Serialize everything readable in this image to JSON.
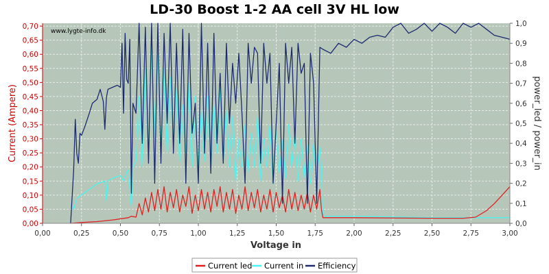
{
  "chart_data": {
    "type": "line",
    "title": "LD-30 Boost 1-2 AA cell 3V HL low",
    "watermark": "www.lygte-info.dk",
    "xlabel": "Voltage in",
    "ylabel": "Current (Ampere)",
    "y2label": "power_led / power_in",
    "xlim": [
      0,
      3.0
    ],
    "ylim": [
      0,
      0.71
    ],
    "y2lim": [
      0,
      1.0
    ],
    "x_ticks": [
      "0,00",
      "0,25",
      "0,50",
      "0,75",
      "1,00",
      "1,25",
      "1,50",
      "1,75",
      "2,00",
      "2,25",
      "2,50",
      "2,75",
      "3,00"
    ],
    "y_ticks": [
      "0,00",
      "0,05",
      "0,10",
      "0,15",
      "0,20",
      "0,25",
      "0,30",
      "0,35",
      "0,40",
      "0,45",
      "0,50",
      "0,55",
      "0,60",
      "0,65",
      "0,70"
    ],
    "y2_ticks": [
      "0,0",
      "0,1",
      "0,2",
      "0,3",
      "0,4",
      "0,5",
      "0,6",
      "0,7",
      "0,8",
      "0,9",
      "1,0"
    ],
    "grid": true,
    "legend_position": "bottom-center",
    "colors": {
      "plot_bg": "#b6c6b9",
      "grid": "#e8ece8",
      "current_led": "#e02020",
      "current_in": "#4ef2ee",
      "efficiency": "#1c2a6e",
      "left_axis": "#cc0000"
    },
    "series": [
      {
        "name": "Current led",
        "axis": "left",
        "color": "#e02020",
        "x": [
          0.18,
          0.25,
          0.35,
          0.45,
          0.55,
          0.57,
          0.6,
          0.62,
          0.64,
          0.66,
          0.68,
          0.7,
          0.72,
          0.74,
          0.76,
          0.78,
          0.8,
          0.82,
          0.84,
          0.86,
          0.88,
          0.9,
          0.92,
          0.94,
          0.96,
          0.98,
          1.0,
          1.02,
          1.04,
          1.06,
          1.08,
          1.1,
          1.12,
          1.14,
          1.16,
          1.18,
          1.2,
          1.22,
          1.24,
          1.26,
          1.28,
          1.3,
          1.32,
          1.34,
          1.36,
          1.38,
          1.4,
          1.42,
          1.44,
          1.46,
          1.48,
          1.5,
          1.52,
          1.54,
          1.56,
          1.58,
          1.6,
          1.62,
          1.64,
          1.66,
          1.68,
          1.7,
          1.72,
          1.74,
          1.76,
          1.78,
          1.79,
          1.8,
          2.0,
          2.5,
          2.7,
          2.78,
          2.85,
          2.9,
          2.95,
          3.0
        ],
        "values": [
          0.0,
          0.003,
          0.006,
          0.012,
          0.02,
          0.025,
          0.022,
          0.07,
          0.03,
          0.09,
          0.04,
          0.11,
          0.045,
          0.12,
          0.05,
          0.13,
          0.04,
          0.11,
          0.055,
          0.12,
          0.04,
          0.1,
          0.06,
          0.13,
          0.035,
          0.1,
          0.045,
          0.12,
          0.05,
          0.11,
          0.04,
          0.12,
          0.06,
          0.13,
          0.04,
          0.11,
          0.05,
          0.12,
          0.035,
          0.1,
          0.05,
          0.13,
          0.045,
          0.11,
          0.055,
          0.12,
          0.04,
          0.1,
          0.05,
          0.12,
          0.04,
          0.11,
          0.055,
          0.1,
          0.04,
          0.12,
          0.05,
          0.11,
          0.045,
          0.1,
          0.05,
          0.11,
          0.04,
          0.1,
          0.05,
          0.12,
          0.05,
          0.02,
          0.02,
          0.018,
          0.018,
          0.022,
          0.045,
          0.07,
          0.1,
          0.13
        ]
      },
      {
        "name": "Current in",
        "axis": "left",
        "color": "#4ef2ee",
        "x": [
          0.18,
          0.2,
          0.22,
          0.25,
          0.3,
          0.35,
          0.4,
          0.41,
          0.42,
          0.45,
          0.5,
          0.52,
          0.54,
          0.55,
          0.56,
          0.57,
          0.58,
          0.6,
          0.62,
          0.64,
          0.66,
          0.68,
          0.7,
          0.72,
          0.74,
          0.76,
          0.78,
          0.8,
          0.82,
          0.84,
          0.86,
          0.88,
          0.9,
          0.92,
          0.94,
          0.96,
          0.98,
          1.0,
          1.02,
          1.04,
          1.06,
          1.08,
          1.1,
          1.12,
          1.14,
          1.16,
          1.18,
          1.2,
          1.22,
          1.24,
          1.26,
          1.28,
          1.3,
          1.32,
          1.34,
          1.36,
          1.38,
          1.4,
          1.42,
          1.44,
          1.46,
          1.48,
          1.5,
          1.52,
          1.54,
          1.56,
          1.58,
          1.6,
          1.62,
          1.64,
          1.66,
          1.68,
          1.7,
          1.72,
          1.74,
          1.76,
          1.78,
          1.79,
          1.8,
          2.0,
          2.5,
          2.75,
          3.0
        ],
        "values": [
          0.07,
          0.05,
          0.09,
          0.1,
          0.12,
          0.14,
          0.15,
          0.08,
          0.15,
          0.16,
          0.17,
          0.15,
          0.18,
          0.19,
          0.13,
          0.06,
          0.2,
          0.22,
          0.45,
          0.2,
          0.55,
          0.25,
          0.63,
          0.3,
          0.6,
          0.28,
          0.55,
          0.25,
          0.52,
          0.3,
          0.48,
          0.22,
          0.42,
          0.25,
          0.5,
          0.2,
          0.45,
          0.18,
          0.4,
          0.22,
          0.45,
          0.2,
          0.42,
          0.25,
          0.48,
          0.22,
          0.4,
          0.2,
          0.38,
          0.15,
          0.3,
          0.2,
          0.35,
          0.18,
          0.32,
          0.2,
          0.38,
          0.15,
          0.3,
          0.2,
          0.35,
          0.14,
          0.33,
          0.18,
          0.3,
          0.16,
          0.35,
          0.2,
          0.32,
          0.15,
          0.3,
          0.16,
          0.28,
          0.14,
          0.28,
          0.15,
          0.27,
          0.2,
          0.025,
          0.025,
          0.02,
          0.02,
          0.02
        ]
      },
      {
        "name": "Efficiency",
        "axis": "right",
        "color": "#1c2a6e",
        "x": [
          0.18,
          0.2,
          0.21,
          0.22,
          0.23,
          0.24,
          0.25,
          0.27,
          0.3,
          0.32,
          0.35,
          0.37,
          0.39,
          0.4,
          0.41,
          0.42,
          0.45,
          0.48,
          0.5,
          0.51,
          0.52,
          0.53,
          0.54,
          0.55,
          0.56,
          0.57,
          0.58,
          0.6,
          0.62,
          0.64,
          0.66,
          0.68,
          0.7,
          0.72,
          0.74,
          0.76,
          0.78,
          0.8,
          0.82,
          0.84,
          0.86,
          0.88,
          0.9,
          0.92,
          0.94,
          0.96,
          0.98,
          1.0,
          1.02,
          1.04,
          1.06,
          1.08,
          1.1,
          1.12,
          1.14,
          1.16,
          1.18,
          1.2,
          1.22,
          1.24,
          1.26,
          1.28,
          1.3,
          1.32,
          1.34,
          1.36,
          1.38,
          1.4,
          1.42,
          1.44,
          1.46,
          1.48,
          1.5,
          1.52,
          1.54,
          1.56,
          1.58,
          1.6,
          1.62,
          1.64,
          1.66,
          1.68,
          1.7,
          1.72,
          1.74,
          1.76,
          1.78,
          1.8,
          1.85,
          1.9,
          1.95,
          2.0,
          2.05,
          2.1,
          2.15,
          2.2,
          2.25,
          2.3,
          2.35,
          2.4,
          2.45,
          2.5,
          2.55,
          2.6,
          2.65,
          2.7,
          2.75,
          2.8,
          2.85,
          2.9,
          2.95,
          3.0
        ],
        "values": [
          0.0,
          0.27,
          0.52,
          0.35,
          0.3,
          0.45,
          0.44,
          0.48,
          0.55,
          0.6,
          0.62,
          0.67,
          0.61,
          0.47,
          0.63,
          0.67,
          0.68,
          0.69,
          0.68,
          0.9,
          0.55,
          0.95,
          0.72,
          0.7,
          0.92,
          0.15,
          0.6,
          0.55,
          1.0,
          0.4,
          0.98,
          0.3,
          1.0,
          0.2,
          1.0,
          0.3,
          0.95,
          0.5,
          1.0,
          0.35,
          0.9,
          0.4,
          0.97,
          0.2,
          0.95,
          0.45,
          0.6,
          0.2,
          1.0,
          0.35,
          0.9,
          0.25,
          0.95,
          0.4,
          0.75,
          0.3,
          0.9,
          0.5,
          0.8,
          0.6,
          0.85,
          0.55,
          0.2,
          0.9,
          0.7,
          0.88,
          0.85,
          0.3,
          0.9,
          0.7,
          0.85,
          0.2,
          0.5,
          0.8,
          0.1,
          0.9,
          0.7,
          0.88,
          0.4,
          0.9,
          0.75,
          0.8,
          0.1,
          0.85,
          0.7,
          0.1,
          0.88,
          0.87,
          0.85,
          0.9,
          0.88,
          0.92,
          0.9,
          0.93,
          0.94,
          0.93,
          0.98,
          1.0,
          0.95,
          0.97,
          1.0,
          0.96,
          1.0,
          0.98,
          0.95,
          1.0,
          0.98,
          1.0,
          0.97,
          0.94,
          0.93,
          0.92
        ]
      }
    ]
  }
}
